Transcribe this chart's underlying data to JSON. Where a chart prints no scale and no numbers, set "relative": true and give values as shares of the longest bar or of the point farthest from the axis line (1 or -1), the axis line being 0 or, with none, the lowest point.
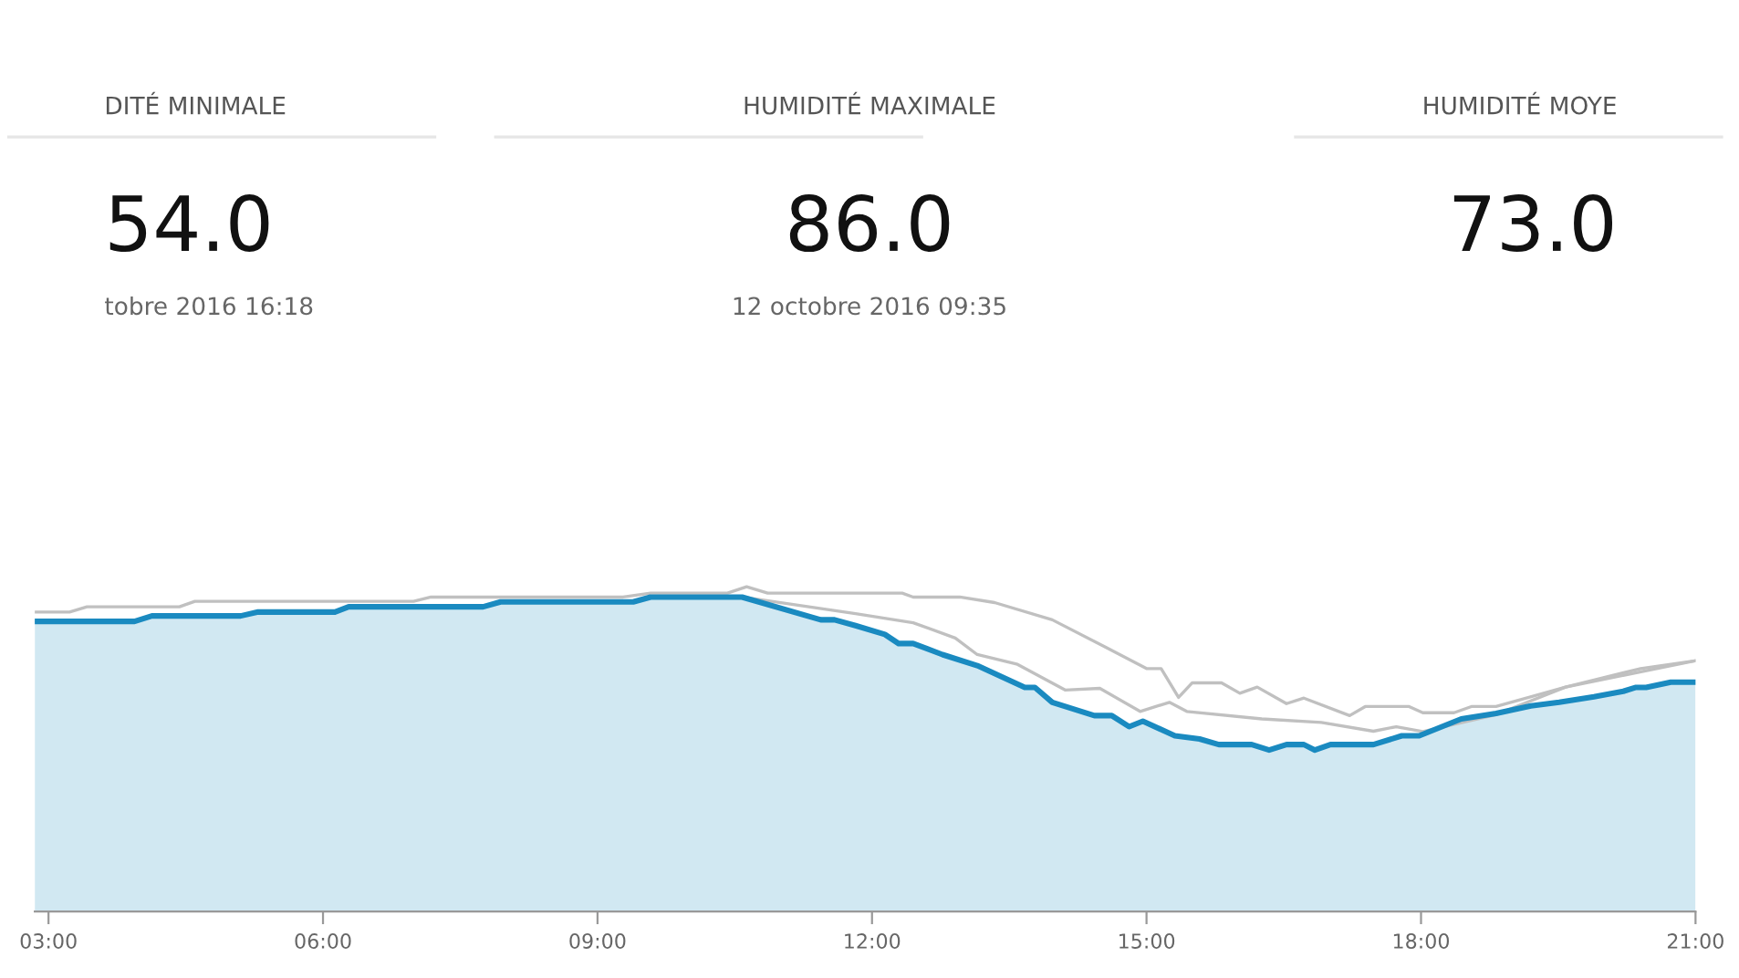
{
  "chart_data": [
    {
      "type": "other",
      "title": "DITÉ MINIMALE",
      "subtitle": "54.0",
      "annotations": [
        "tobre 2016 16:18"
      ]
    },
    {
      "type": "other",
      "title": "HUMIDITÉ MAXIMALE",
      "subtitle": "86.0",
      "annotations": [
        "12 octobre 2016 09:35"
      ]
    },
    {
      "type": "other",
      "title": "HUMIDITÉ MOYE",
      "subtitle": "73.0"
    },
    {
      "type": "area",
      "relative": true,
      "xlim": [
        2.85,
        21.0
      ],
      "xticks": [
        {
          "value": 3,
          "label": "03:00"
        },
        {
          "value": 6,
          "label": "06:00"
        },
        {
          "value": 9,
          "label": "09:00"
        },
        {
          "value": 12,
          "label": "12:00"
        },
        {
          "value": 15,
          "label": "15:00"
        },
        {
          "value": 18,
          "label": "18:00"
        },
        {
          "value": 21,
          "label": "21:00"
        }
      ],
      "series": [
        {
          "type": "line",
          "color": "#c0c0c0",
          "x": [
            2.85,
            3.23,
            3.42,
            4.43,
            4.6,
            6.99,
            7.18,
            9.28,
            9.58,
            10.42,
            10.63,
            10.86,
            12.33,
            12.45,
            12.96,
            13.34,
            13.97,
            14.55,
            15.0,
            15.16,
            15.35,
            15.5,
            15.82,
            16.02,
            16.21,
            16.53,
            16.72,
            17.22,
            17.39,
            17.87,
            18.02,
            18.36,
            18.55,
            18.82,
            19.58,
            20.4,
            21.0
          ],
          "values": [
            0.922,
            0.922,
            0.938,
            0.938,
            0.955,
            0.955,
            0.968,
            0.968,
            0.98,
            0.98,
            1.0,
            0.98,
            0.98,
            0.968,
            0.968,
            0.951,
            0.898,
            0.814,
            0.748,
            0.748,
            0.659,
            0.704,
            0.704,
            0.672,
            0.691,
            0.64,
            0.657,
            0.603,
            0.631,
            0.631,
            0.612,
            0.612,
            0.631,
            0.631,
            0.691,
            0.748,
            0.772
          ]
        },
        {
          "type": "line",
          "color": "#c0c0c0",
          "x": [
            2.85,
            3.94,
            4.13,
            5.1,
            5.29,
            6.13,
            6.28,
            7.75,
            7.94,
            9.39,
            9.58,
            10.58,
            11.82,
            12.45,
            12.91,
            13.15,
            13.59,
            14.11,
            14.49,
            14.93,
            15.25,
            15.44,
            16.26,
            16.91,
            17.48,
            17.73,
            18.02,
            18.82,
            19.58,
            21.0
          ],
          "values": [
            0.893,
            0.893,
            0.91,
            0.91,
            0.922,
            0.922,
            0.938,
            0.938,
            0.953,
            0.953,
            0.968,
            0.968,
            0.917,
            0.889,
            0.842,
            0.791,
            0.761,
            0.682,
            0.687,
            0.616,
            0.644,
            0.616,
            0.593,
            0.582,
            0.555,
            0.569,
            0.554,
            0.606,
            0.691,
            0.772
          ]
        },
        {
          "type": "area",
          "color": "#1a8ac0",
          "x": [
            2.85,
            3.94,
            4.13,
            5.1,
            5.29,
            6.13,
            6.28,
            7.75,
            7.94,
            9.39,
            9.58,
            10.58,
            11.44,
            11.59,
            11.82,
            12.14,
            12.29,
            12.45,
            12.77,
            13.15,
            13.67,
            13.78,
            13.97,
            14.43,
            14.62,
            14.81,
            14.96,
            15.31,
            15.58,
            15.79,
            16.15,
            16.34,
            16.53,
            16.72,
            16.84,
            17.01,
            17.48,
            17.79,
            17.98,
            18.44,
            18.82,
            19.2,
            19.51,
            19.89,
            20.21,
            20.35,
            20.46,
            20.73,
            21.0
          ],
          "values": [
            0.893,
            0.893,
            0.91,
            0.91,
            0.922,
            0.922,
            0.938,
            0.938,
            0.953,
            0.953,
            0.968,
            0.968,
            0.898,
            0.898,
            0.88,
            0.853,
            0.825,
            0.825,
            0.791,
            0.757,
            0.69,
            0.69,
            0.644,
            0.603,
            0.603,
            0.569,
            0.586,
            0.541,
            0.531,
            0.514,
            0.514,
            0.497,
            0.514,
            0.514,
            0.497,
            0.514,
            0.514,
            0.541,
            0.541,
            0.593,
            0.61,
            0.633,
            0.644,
            0.661,
            0.678,
            0.69,
            0.69,
            0.706,
            0.706
          ]
        }
      ]
    }
  ]
}
